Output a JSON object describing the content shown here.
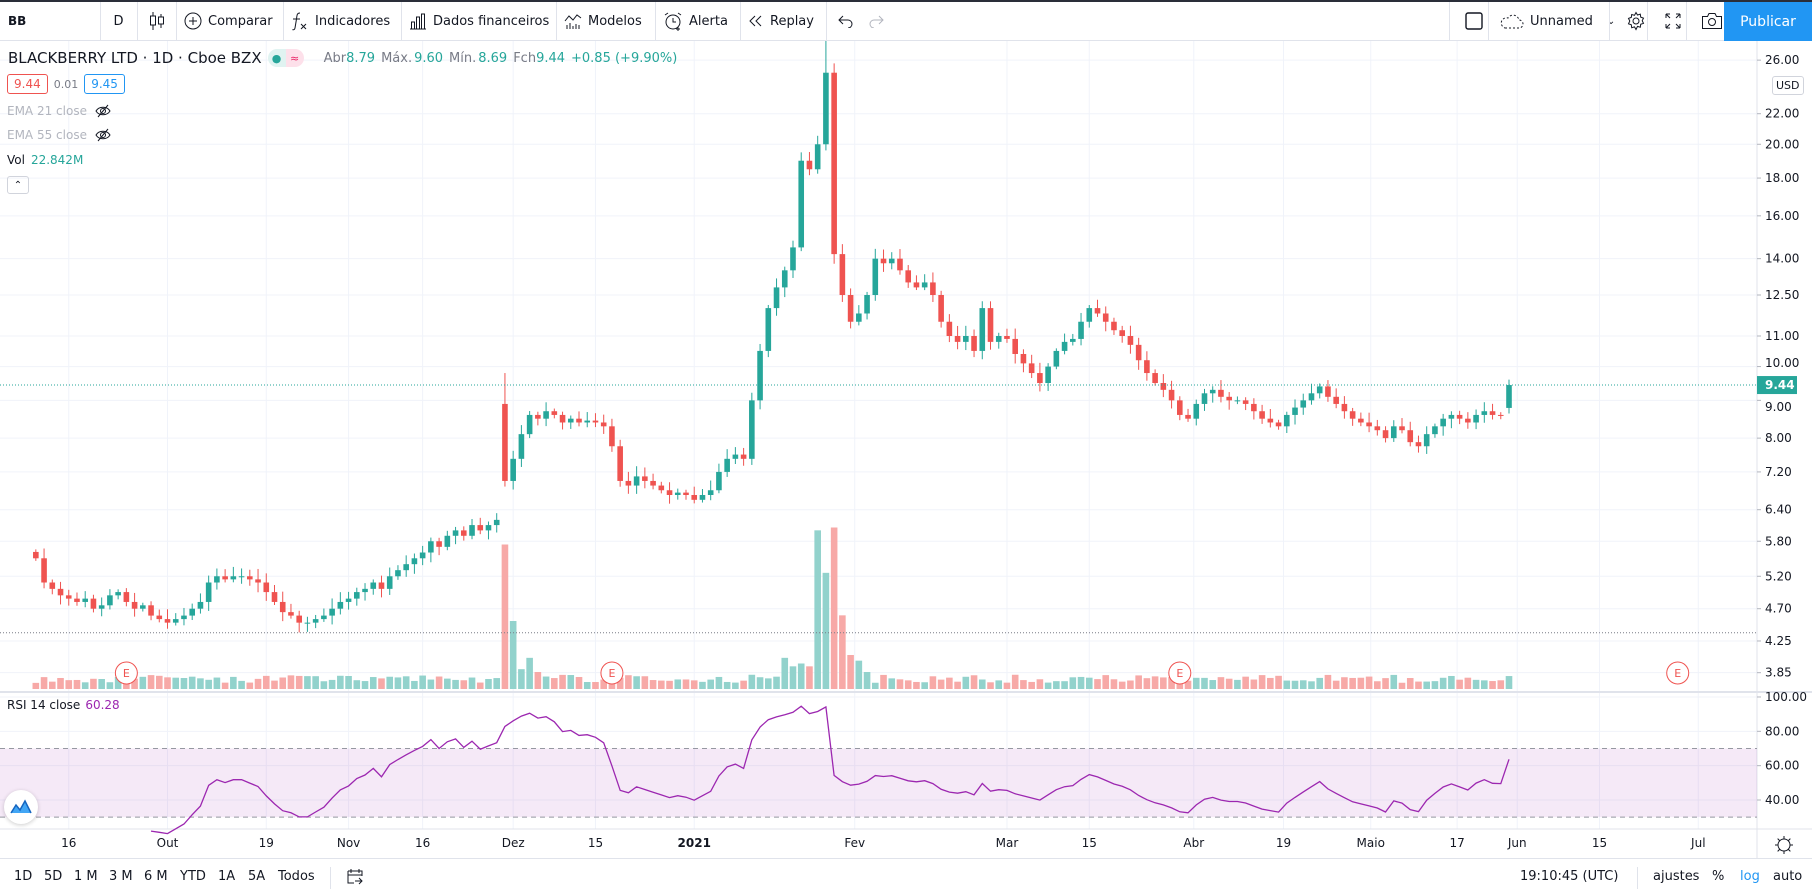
{
  "toolbar": {
    "symbol": "BB",
    "interval": "D",
    "compare": "Comparar",
    "indicators": "Indicadores",
    "financials": "Dados financeiros",
    "templates": "Modelos",
    "alert": "Alerta",
    "replay": "Replay",
    "layout_name": "Unnamed",
    "publish": "Publicar"
  },
  "legend": {
    "title": "BLACKBERRY LTD · 1D · Cboe BZX",
    "open_label": "Abr",
    "open": "8.79",
    "high_label": "Máx.",
    "high": "9.60",
    "low_label": "Mín.",
    "low": "8.69",
    "close_label": "Fch",
    "close": "9.44",
    "change": "+0.85 (+9.90%)",
    "bid": "9.44",
    "spread": "0.01",
    "ask": "9.45",
    "ema21": "EMA 21 close",
    "ema55": "EMA 55 close",
    "vol_label": "Vol",
    "vol_value": "22.842M"
  },
  "currency": "USD",
  "rsi": {
    "label": "RSI 14 close",
    "value": "60.28"
  },
  "colors": {
    "up": "#26a69a",
    "down": "#ef5350",
    "vol_up": "#92d2cc",
    "vol_down": "#f7a9a7",
    "rsi": "#9c27b0",
    "accent": "#2196f3"
  },
  "chart_data": {
    "type": "candlestick",
    "scale": "log",
    "last_price": 9.44,
    "price_line_2": 4.36,
    "price_ticks": [
      "26.00",
      "22.00",
      "20.00",
      "18.00",
      "16.00",
      "14.00",
      "12.50",
      "11.00",
      "10.00",
      "9.00",
      "8.00",
      "7.20",
      "6.40",
      "5.80",
      "5.20",
      "4.70",
      "4.25",
      "3.85"
    ],
    "rsi_ticks": [
      "100.00",
      "80.00",
      "60.00",
      "40.00"
    ],
    "rsi_bands": [
      30,
      70
    ],
    "time_ticks": [
      {
        "label": "16",
        "index": 4
      },
      {
        "label": "Out",
        "index": 16
      },
      {
        "label": "19",
        "index": 28
      },
      {
        "label": "Nov",
        "index": 38
      },
      {
        "label": "16",
        "index": 47
      },
      {
        "label": "Dez",
        "index": 58
      },
      {
        "label": "15",
        "index": 68
      },
      {
        "label": "2021",
        "index": 80
      },
      {
        "label": "Fev",
        "index": 99.5
      },
      {
        "label": "Mar",
        "index": 118
      },
      {
        "label": "15",
        "index": 128
      },
      {
        "label": "Abr",
        "index": 140.7
      },
      {
        "label": "19",
        "index": 151.6
      },
      {
        "label": "Maio",
        "index": 162.2
      },
      {
        "label": "17",
        "index": 172.7
      },
      {
        "label": "Jun",
        "index": 180
      },
      {
        "label": "15",
        "index": 190
      },
      {
        "label": "Jul",
        "index": 202
      }
    ],
    "earnings_markers": [
      {
        "label": "E",
        "index": 11
      },
      {
        "label": "E",
        "index": 70
      },
      {
        "label": "E",
        "index": 139
      },
      {
        "label": "E",
        "index": 199.5
      }
    ],
    "closes": [
      5.5,
      5.1,
      5.0,
      4.9,
      4.85,
      4.8,
      4.85,
      4.7,
      4.75,
      4.9,
      4.95,
      4.8,
      4.7,
      4.75,
      4.6,
      4.55,
      4.5,
      4.55,
      4.6,
      4.7,
      4.8,
      5.1,
      5.2,
      5.15,
      5.2,
      5.2,
      5.15,
      5.1,
      4.95,
      4.8,
      4.65,
      4.6,
      4.5,
      4.5,
      4.55,
      4.6,
      4.7,
      4.8,
      4.85,
      4.95,
      5.0,
      5.1,
      5.0,
      5.2,
      5.3,
      5.4,
      5.5,
      5.6,
      5.8,
      5.7,
      5.9,
      6.0,
      5.9,
      6.1,
      6.0,
      6.1,
      6.2,
      7.0,
      7.5,
      8.1,
      8.6,
      8.5,
      8.7,
      8.6,
      8.4,
      8.5,
      8.4,
      8.45,
      8.4,
      8.3,
      7.8,
      7.0,
      6.9,
      7.1,
      7.0,
      6.9,
      6.8,
      6.7,
      6.75,
      6.7,
      6.6,
      6.7,
      6.8,
      7.2,
      7.5,
      7.6,
      7.5,
      9.0,
      10.5,
      12.0,
      12.8,
      13.5,
      14.5,
      19.0,
      18.5,
      20.0,
      25.0,
      14.2,
      12.5,
      11.5,
      11.8,
      12.5,
      14.0,
      13.8,
      14.0,
      13.5,
      13.0,
      12.8,
      13.0,
      12.5,
      11.5,
      11.0,
      10.8,
      11.0,
      10.5,
      12.0,
      10.8,
      11.0,
      10.9,
      10.4,
      10.1,
      9.8,
      9.5,
      10.0,
      10.5,
      10.8,
      10.9,
      11.5,
      12.0,
      11.8,
      11.5,
      11.2,
      11.0,
      10.7,
      10.2,
      9.8,
      9.5,
      9.3,
      9.0,
      8.6,
      8.5,
      8.9,
      9.2,
      9.3,
      9.1,
      9.0,
      9.0,
      8.9,
      8.7,
      8.5,
      8.4,
      8.3,
      8.6,
      8.8,
      9.0,
      9.2,
      9.4,
      9.1,
      8.9,
      8.7,
      8.5,
      8.4,
      8.3,
      8.2,
      8.0,
      8.3,
      8.2,
      7.9,
      7.8,
      8.1,
      8.3,
      8.5,
      8.6,
      8.5,
      8.4,
      8.6,
      8.7,
      8.6,
      8.59,
      9.44
    ],
    "open_overrides": {
      "57": 8.9,
      "179": 8.79
    },
    "high_overrides": {
      "57": 9.8,
      "96": 28.0,
      "179": 9.6
    },
    "volume_unit": "M",
    "volume_default": 18,
    "volume_spikes": {
      "57": 255,
      "58": 120,
      "59": 35,
      "60": 55,
      "61": 30,
      "62": 22,
      "91": 55,
      "92": 40,
      "93": 45,
      "94": 40,
      "95": 280,
      "96": 205,
      "97": 285,
      "98": 130,
      "99": 60,
      "100": 50,
      "101": 30,
      "179": 22.842
    }
  },
  "bottombar": {
    "ranges": [
      "1D",
      "5D",
      "1 M",
      "3 M",
      "6 M",
      "YTD",
      "1A",
      "5A",
      "Todos"
    ],
    "clock": "19:10:45 (UTC)",
    "adjust": "ajustes",
    "percent": "%",
    "log": "log",
    "auto": "auto"
  }
}
